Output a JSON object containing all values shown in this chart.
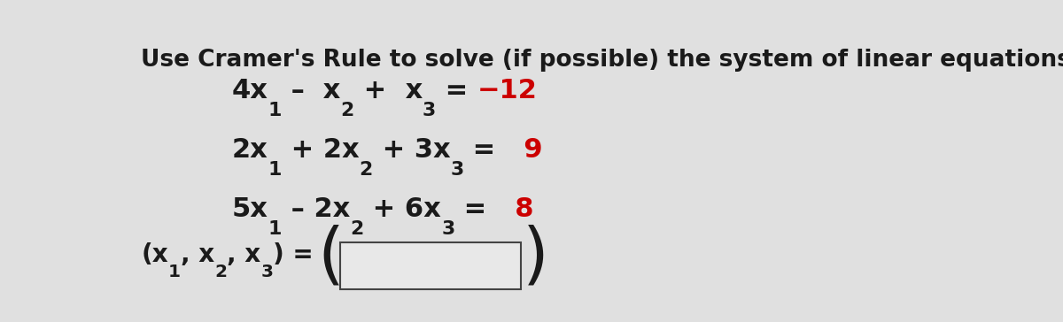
{
  "title": "Use Cramer's Rule to solve (if possible) the system of linear equations.",
  "title_color": "#1a1a1a",
  "title_fontsize": 19,
  "eq_fontsize": 22,
  "sol_fontsize": 20,
  "paren_fontsize": 55,
  "red_color": "#cc0000",
  "black_color": "#1a1a1a",
  "bg_color": "#e0e0e0",
  "box_facecolor": "#e8e8e8",
  "box_edgecolor": "#444444",
  "eq1_parts": [
    {
      "text": "4x",
      "sub": "1",
      "color": "black"
    },
    {
      "text": " – ",
      "sub": "",
      "color": "black"
    },
    {
      "text": " x",
      "sub": "2",
      "color": "black"
    },
    {
      "text": " + ",
      "sub": "",
      "color": "black"
    },
    {
      "text": " x",
      "sub": "3",
      "color": "black"
    },
    {
      "text": " = ",
      "sub": "",
      "color": "black"
    },
    {
      "text": "−12",
      "sub": "",
      "color": "red"
    }
  ],
  "eq2_parts": [
    {
      "text": "2x",
      "sub": "1",
      "color": "black"
    },
    {
      "text": " + 2x",
      "sub": "2",
      "color": "black"
    },
    {
      "text": " + 3x",
      "sub": "3",
      "color": "black"
    },
    {
      "text": " = ",
      "sub": "",
      "color": "black"
    },
    {
      "text": "  9",
      "sub": "",
      "color": "red"
    }
  ],
  "eq3_parts": [
    {
      "text": "5x",
      "sub": "1",
      "color": "black"
    },
    {
      "text": " – 2x",
      "sub": "2",
      "color": "black"
    },
    {
      "text": " + 6x",
      "sub": "3",
      "color": "black"
    },
    {
      "text": " = ",
      "sub": "",
      "color": "black"
    },
    {
      "text": "  8",
      "sub": "",
      "color": "red"
    }
  ],
  "sol_label": "(x",
  "sol_sub1": "1",
  "sol_mid": ", x",
  "sol_sub2": "2",
  "sol_mid2": ", x",
  "sol_sub3": "3",
  "sol_end": ") ="
}
